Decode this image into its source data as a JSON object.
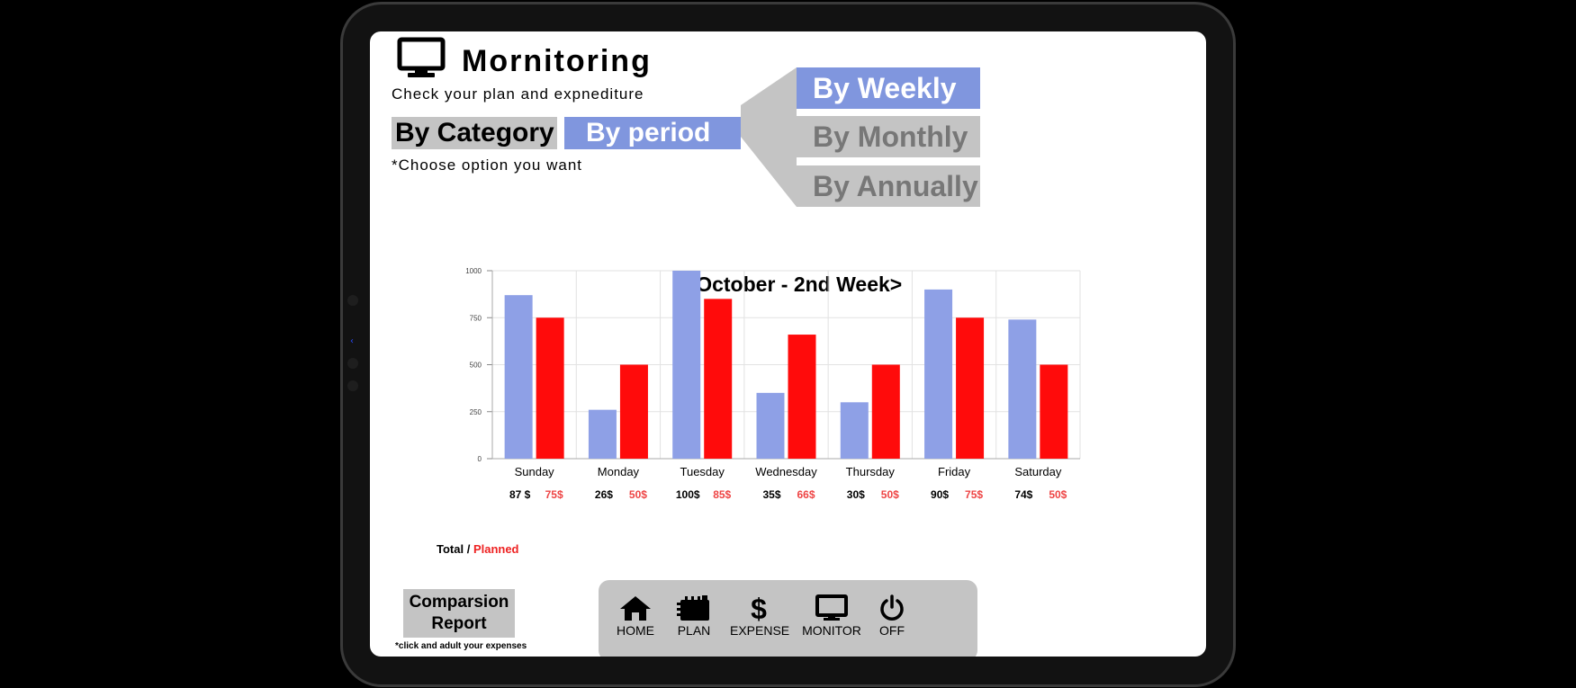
{
  "header": {
    "title": "Mornitoring",
    "subtitle": "Check your plan and expnediture",
    "icon": "monitor-icon"
  },
  "tabs": [
    {
      "label": "By Category",
      "selected": false
    },
    {
      "label": "By period",
      "selected": true
    }
  ],
  "hint": "*Choose option you want",
  "period_options": [
    {
      "label": "By Weekly",
      "selected": true
    },
    {
      "label": "By Monthly",
      "selected": false
    },
    {
      "label": "By Annually",
      "selected": false
    }
  ],
  "colors": {
    "actual": "#8ea0e6",
    "planned": "#ff0b0b",
    "accent": "#8096de",
    "gray": "#c4c4c4"
  },
  "chart_data": {
    "type": "bar",
    "title": "<October - 2nd Week>",
    "categories": [
      "Sunday",
      "Monday",
      "Tuesday",
      "Wednesday",
      "Thursday",
      "Friday",
      "Saturday"
    ],
    "series": [
      {
        "values": [
          870,
          260,
          1000,
          350,
          300,
          900,
          740
        ]
      },
      {
        "values": [
          750,
          500,
          850,
          660,
          500,
          750,
          500
        ]
      }
    ],
    "yticks": [
      "0",
      "250",
      "500",
      "750",
      "1000"
    ],
    "ylim": [
      0,
      1000
    ],
    "grid": true
  },
  "totals": {
    "label_total": "Total /",
    "label_planned": "Planned",
    "values": [
      {
        "actual": "87 $",
        "planned": "75$"
      },
      {
        "actual": "26$",
        "planned": "50$"
      },
      {
        "actual": "100$",
        "planned": "85$"
      },
      {
        "actual": "35$",
        "planned": "66$"
      },
      {
        "actual": "30$",
        "planned": "50$"
      },
      {
        "actual": "90$",
        "planned": "75$"
      },
      {
        "actual": "74$",
        "planned": "50$"
      }
    ]
  },
  "report": {
    "line1": "Comparsion",
    "line2": "Report",
    "hint": "*click and adult your expenses"
  },
  "nav": [
    {
      "label": "HOME",
      "icon": "home-icon"
    },
    {
      "label": "PLAN",
      "icon": "notebook-icon"
    },
    {
      "label": "EXPENSE",
      "icon": "dollar-icon"
    },
    {
      "label": "MONITOR",
      "icon": "monitor-icon"
    },
    {
      "label": "OFF",
      "icon": "power-icon"
    }
  ]
}
